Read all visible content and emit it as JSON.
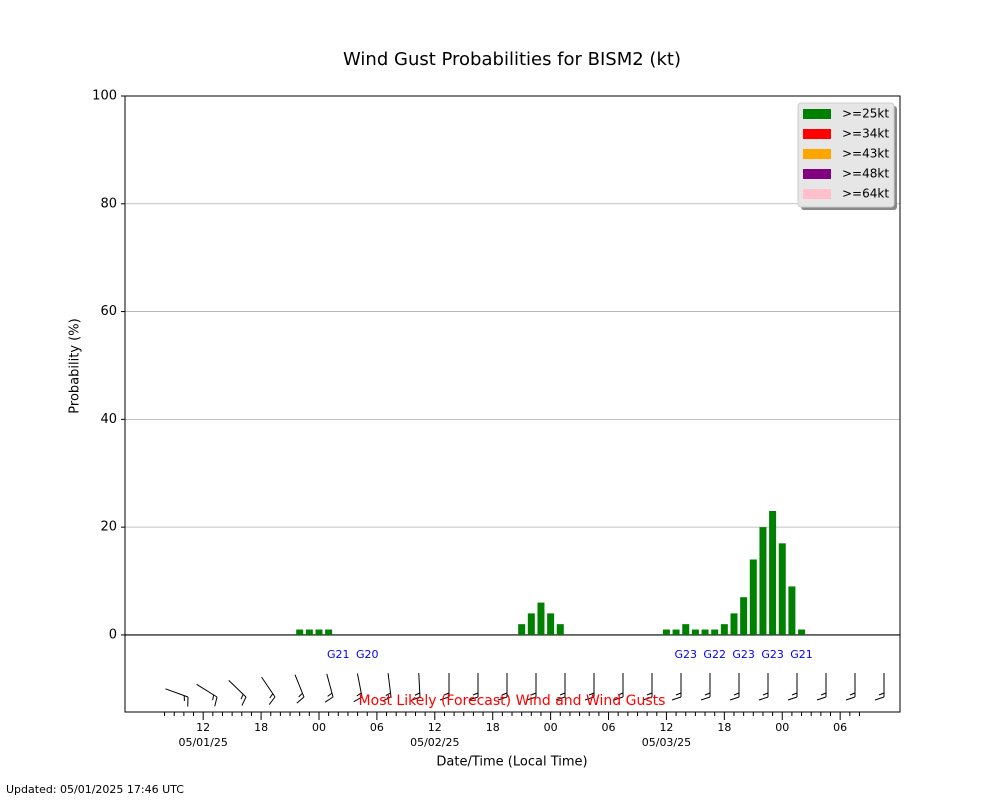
{
  "chart_data": {
    "type": "bar",
    "title": "Wind Gust Probabilities for BISM2 (kt)",
    "xlabel": "Date/Time (Local Time)",
    "ylabel": "Probability (%)",
    "footer": "Updated: 05/01/2025 17:46 UTC",
    "annotation": "Most Likely (Forecast) Wind and Wind Gusts",
    "xlim": [
      3.9,
      84.2
    ],
    "ylim": [
      -14.3,
      100
    ],
    "yticks": [
      0,
      20,
      40,
      60,
      80,
      100
    ],
    "grid": true,
    "legend": "upper right",
    "xticks": [
      {
        "value": 12,
        "label": "12"
      },
      {
        "value": 18,
        "label": "18"
      },
      {
        "value": 24,
        "label": "00"
      },
      {
        "value": 30,
        "label": "06"
      },
      {
        "value": 36,
        "label": "12"
      },
      {
        "value": 42,
        "label": "18"
      },
      {
        "value": 48,
        "label": "00"
      },
      {
        "value": 54,
        "label": "06"
      },
      {
        "value": 60,
        "label": "12"
      },
      {
        "value": 66,
        "label": "18"
      },
      {
        "value": 72,
        "label": "00"
      },
      {
        "value": 78,
        "label": "06"
      }
    ],
    "date_labels": [
      {
        "value": 12,
        "label": "05/01/25"
      },
      {
        "value": 36,
        "label": "05/02/25"
      },
      {
        "value": 60,
        "label": "05/03/25"
      }
    ],
    "xminor": [
      8,
      9,
      10,
      11,
      13,
      14,
      15,
      16,
      17,
      19,
      20,
      21,
      22,
      23,
      25,
      26,
      27,
      28,
      29,
      31,
      32,
      33,
      34,
      35,
      37,
      38,
      39,
      40,
      41,
      43,
      44,
      45,
      46,
      47,
      49,
      50,
      51,
      52,
      53,
      55,
      56,
      57,
      58,
      59,
      61,
      62,
      63,
      64,
      65,
      67,
      68,
      69,
      70,
      71,
      73,
      74,
      75,
      76,
      77,
      79,
      80
    ],
    "gusts": [
      {
        "value": 26,
        "label": "G21"
      },
      {
        "value": 29,
        "label": "G20"
      },
      {
        "value": 62,
        "label": "G23"
      },
      {
        "value": 65,
        "label": "G22"
      },
      {
        "value": 68,
        "label": "G23"
      },
      {
        "value": 71,
        "label": "G23"
      },
      {
        "value": 74,
        "label": "G21"
      }
    ],
    "x": [
      22,
      23,
      24,
      25,
      45,
      46,
      47,
      48,
      49,
      60,
      61,
      62,
      63,
      64,
      65,
      66,
      67,
      68,
      69,
      70,
      71,
      72,
      73,
      74
    ],
    "series": [
      {
        "name": ">=25kt",
        "color": "#008000",
        "values": [
          1,
          1,
          1,
          1,
          2,
          4,
          6,
          4,
          2,
          1,
          1,
          2,
          1,
          1,
          1,
          2,
          4,
          7,
          14,
          20,
          23,
          17,
          9,
          1
        ]
      },
      {
        "name": ">=34kt",
        "color": "#ff0000",
        "values": [
          0,
          0,
          0,
          0,
          0,
          0,
          0,
          0,
          0,
          0,
          0,
          0,
          0,
          0,
          0,
          0,
          0,
          0,
          0,
          0,
          0,
          0,
          0,
          0
        ]
      },
      {
        "name": ">=43kt",
        "color": "#ffa500",
        "values": [
          0,
          0,
          0,
          0,
          0,
          0,
          0,
          0,
          0,
          0,
          0,
          0,
          0,
          0,
          0,
          0,
          0,
          0,
          0,
          0,
          0,
          0,
          0,
          0
        ]
      },
      {
        "name": ">=48kt",
        "color": "#800080",
        "values": [
          0,
          0,
          0,
          0,
          0,
          0,
          0,
          0,
          0,
          0,
          0,
          0,
          0,
          0,
          0,
          0,
          0,
          0,
          0,
          0,
          0,
          0,
          0,
          0
        ]
      },
      {
        "name": ">=64kt",
        "color": "#ffc0cb",
        "values": [
          0,
          0,
          0,
          0,
          0,
          0,
          0,
          0,
          0,
          0,
          0,
          0,
          0,
          0,
          0,
          0,
          0,
          0,
          0,
          0,
          0,
          0,
          0,
          0
        ]
      }
    ]
  }
}
